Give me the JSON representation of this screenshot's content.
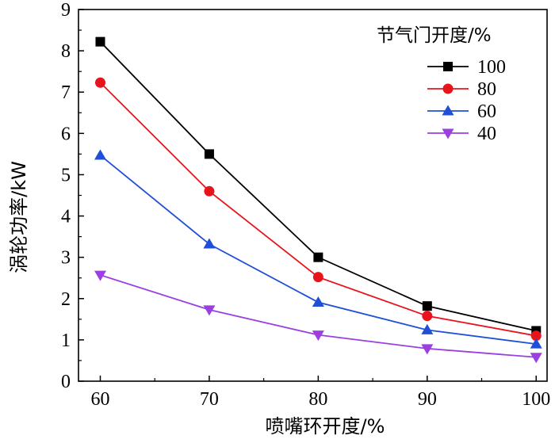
{
  "chart_data": {
    "type": "line",
    "title": "",
    "xlabel": "喷嘴环开度/%",
    "ylabel": "涡轮功率/kW",
    "x": [
      60,
      70,
      80,
      90,
      100
    ],
    "xlim": [
      58,
      101
    ],
    "ylim": [
      0,
      9
    ],
    "xticks": [
      "60",
      "70",
      "80",
      "90",
      "100"
    ],
    "yticks": [
      "0",
      "1",
      "2",
      "3",
      "4",
      "5",
      "6",
      "7",
      "8",
      "9"
    ],
    "grid": false,
    "legend": {
      "title": "节气门开度/%",
      "placement": "top-right"
    },
    "series": [
      {
        "name": "100",
        "color": "#000000",
        "marker": "square",
        "values": [
          8.22,
          5.5,
          3.0,
          1.82,
          1.22
        ]
      },
      {
        "name": "80",
        "color": "#e8141c",
        "marker": "circle",
        "values": [
          7.23,
          4.6,
          2.52,
          1.58,
          1.1
        ]
      },
      {
        "name": "60",
        "color": "#1f4fd8",
        "marker": "triangle-up",
        "values": [
          5.47,
          3.32,
          1.91,
          1.24,
          0.9
        ]
      },
      {
        "name": "40",
        "color": "#9b3fe0",
        "marker": "triangle-down",
        "values": [
          2.57,
          1.73,
          1.12,
          0.79,
          0.58
        ]
      }
    ]
  }
}
